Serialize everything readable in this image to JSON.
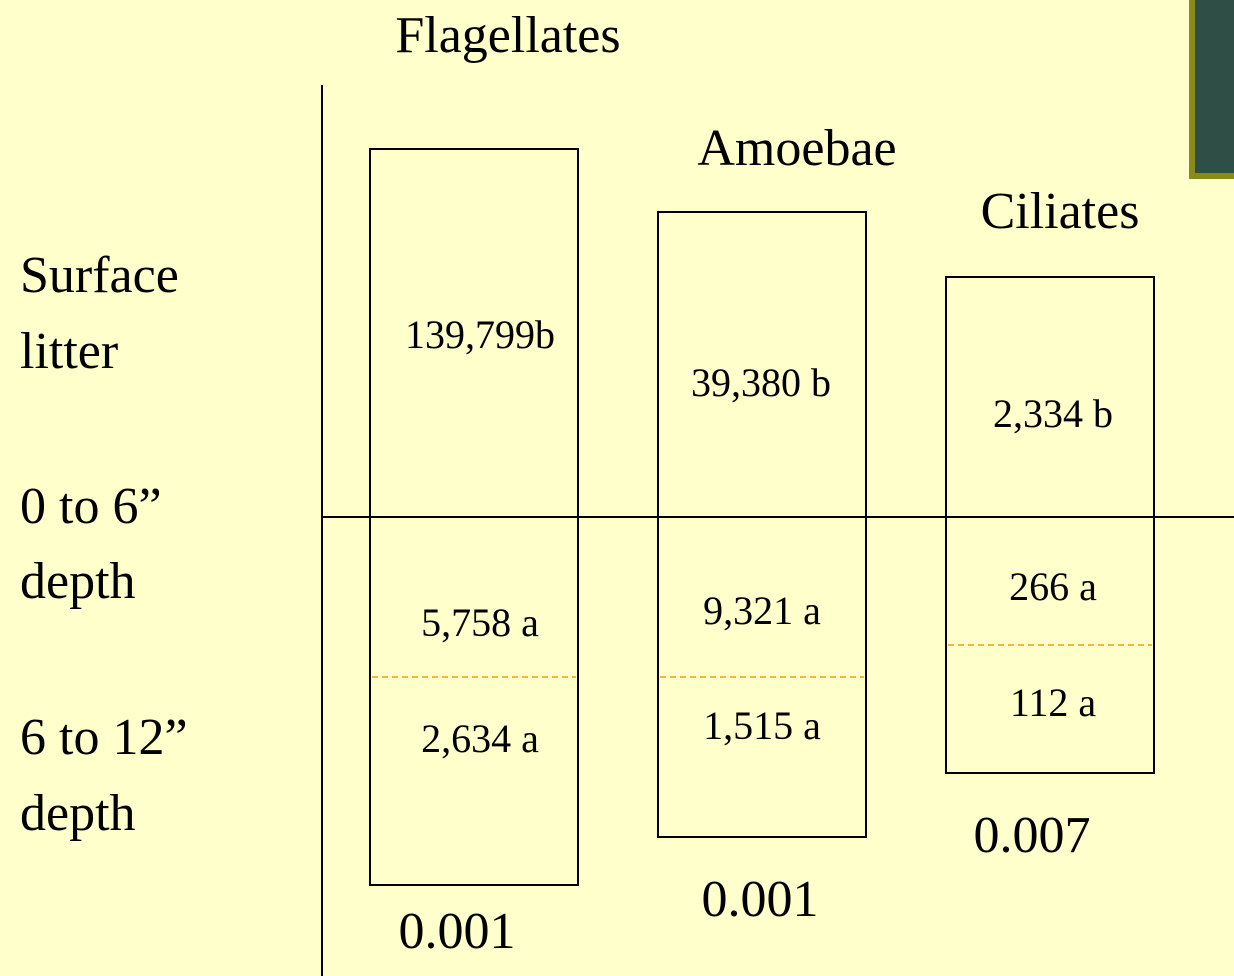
{
  "row_labels": [
    [
      "Surface",
      "litter"
    ],
    [
      "0 to 6”",
      "depth"
    ],
    [
      "6 to 12”",
      "depth"
    ]
  ],
  "columns": [
    {
      "title": "Flagellates",
      "surface": "139,799b",
      "depth_0_6": "5,758 a",
      "depth_6_12": "2,634 a",
      "p_value": "0.001"
    },
    {
      "title": "Amoebae",
      "surface": "39,380 b",
      "depth_0_6": "9,321 a",
      "depth_6_12": "1,515 a",
      "p_value": "0.001"
    },
    {
      "title": "Ciliates",
      "surface": "2,334 b",
      "depth_0_6": "266 a",
      "depth_6_12": "112 a",
      "p_value": "0.007"
    }
  ]
}
